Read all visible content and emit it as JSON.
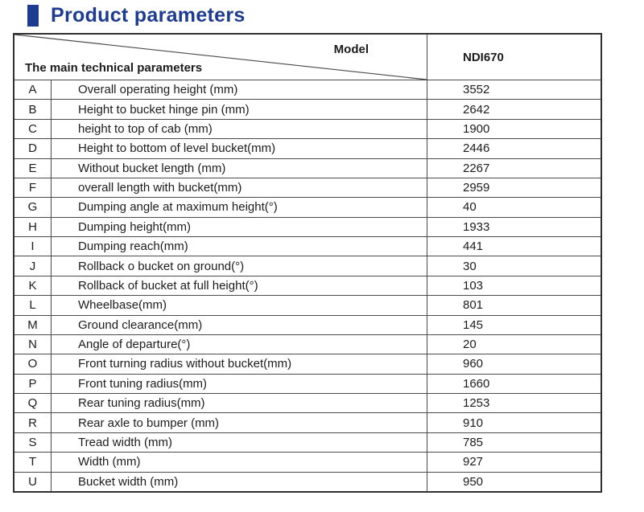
{
  "title": "Product parameters",
  "table": {
    "header": {
      "model_label": "Model",
      "params_label": "The main technical parameters",
      "model_value": "NDI670"
    },
    "rows": [
      {
        "key": "A",
        "label": "Overall operating height (mm)",
        "value": "3552"
      },
      {
        "key": "B",
        "label": "Height to bucket hinge pin (mm)",
        "value": "2642"
      },
      {
        "key": "C",
        "label": "height to top of cab (mm)",
        "value": "1900"
      },
      {
        "key": "D",
        "label": "Height to bottom of level bucket(mm)",
        "value": "2446"
      },
      {
        "key": "E",
        "label": "Without bucket length  (mm)",
        "value": "2267"
      },
      {
        "key": "F",
        "label": "overall length with bucket(mm)",
        "value": "2959"
      },
      {
        "key": "G",
        "label": "Dumping angle at maximum height(°)",
        "value": "40"
      },
      {
        "key": "H",
        "label": "Dumping height(mm)",
        "value": "1933"
      },
      {
        "key": "I",
        "label": "Dumping reach(mm)",
        "value": "441"
      },
      {
        "key": "J",
        "label": "Rollback o bucket on ground(°)",
        "value": "30"
      },
      {
        "key": "K",
        "label": "Rollback of bucket at full height(°)",
        "value": "103"
      },
      {
        "key": "L",
        "label": "Wheelbase(mm)",
        "value": "801"
      },
      {
        "key": "M",
        "label": "Ground clearance(mm)",
        "value": "145"
      },
      {
        "key": "N",
        "label": "Angle of departure(°)",
        "value": "20"
      },
      {
        "key": "O",
        "label": "Front turning radius without bucket(mm)",
        "value": "960"
      },
      {
        "key": "P",
        "label": "Front tuning radius(mm)",
        "value": "1660"
      },
      {
        "key": "Q",
        "label": "Rear tuning radius(mm)",
        "value": "1253"
      },
      {
        "key": "R",
        "label": "Rear axle to bumper (mm)",
        "value": "910"
      },
      {
        "key": "S",
        "label": "Tread width (mm)",
        "value": "785"
      },
      {
        "key": "T",
        "label": "Width (mm)",
        "value": "927"
      },
      {
        "key": "U",
        "label": "Bucket width (mm)",
        "value": "950"
      }
    ]
  },
  "colors": {
    "accent": "#1d3c91",
    "border": "#4a4a4a"
  }
}
